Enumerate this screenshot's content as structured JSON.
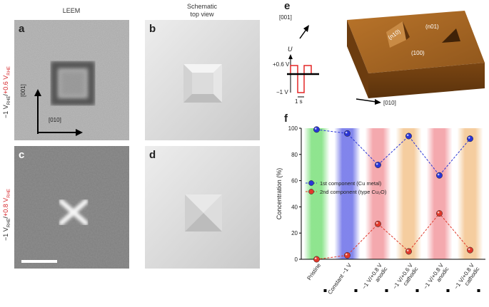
{
  "headers": {
    "leem": "LEEM",
    "schematic_line1": "Schematic",
    "schematic_line2": "top view"
  },
  "panels": {
    "a": "a",
    "b": "b",
    "c": "c",
    "d": "d",
    "e": "e",
    "f": "f"
  },
  "row_labels": {
    "top": {
      "black": "−1 V",
      "black_sub": "RHE",
      "sep": "/",
      "red": "+0.6 V",
      "red_sub": "RHE"
    },
    "bottom": {
      "black": "−1 V",
      "black_sub": "RHE",
      "sep": "/",
      "red": "+0.8 V",
      "red_sub": "RHE"
    }
  },
  "axes_a": {
    "vertical": "[001]",
    "horizontal": "[010]"
  },
  "panel_e": {
    "u_label": "U",
    "plus": "+0.6 V",
    "minus": "−1 V",
    "time": "1 s",
    "dir_001": "[001]",
    "dir_010": "[010]",
    "face_n10": "(n10)",
    "face_n01": "(n01)",
    "face_100": "(100)"
  },
  "colors": {
    "blue": "#2a35d6",
    "red": "#e0392b",
    "green_band": "#7be07b",
    "blue_band": "#6b6fe8",
    "red_band": "#f29aa0",
    "orange_band": "#f3c48e"
  },
  "chart_data": {
    "type": "line",
    "ylabel": "Concentration (%)",
    "xlabel": "",
    "ylim": [
      0,
      100
    ],
    "yticks": [
      0,
      20,
      40,
      60,
      80,
      100
    ],
    "categories": [
      "Pristine",
      "Constant −1 V",
      "−1 V/+0.8 V anodic",
      "−1 V/+0.6 V cathodic",
      "−1 V/+0.8 V anodic",
      "−1 V/+0.8 V cathodic"
    ],
    "category_lines": [
      [
        "Pristine"
      ],
      [
        "Constant −1 V"
      ],
      [
        "−1 V/+0.8 V",
        "anodic"
      ],
      [
        "−1 V/+0.6 V",
        "cathodic"
      ],
      [
        "−1 V/+0.8 V",
        "anodic"
      ],
      [
        "−1 V/+0.8 V",
        "cathodic"
      ]
    ],
    "bands": [
      "green",
      "blue",
      "red",
      "orange",
      "red",
      "orange"
    ],
    "series": [
      {
        "name": "1st component (Cu metal)",
        "color": "blue",
        "values": [
          99,
          96,
          72,
          94,
          64,
          92
        ]
      },
      {
        "name": "2nd component (type Cu₂O)",
        "color": "red",
        "values": [
          0,
          3,
          27,
          6,
          35,
          7
        ]
      }
    ],
    "legend_position": "center-left",
    "grid": false
  }
}
